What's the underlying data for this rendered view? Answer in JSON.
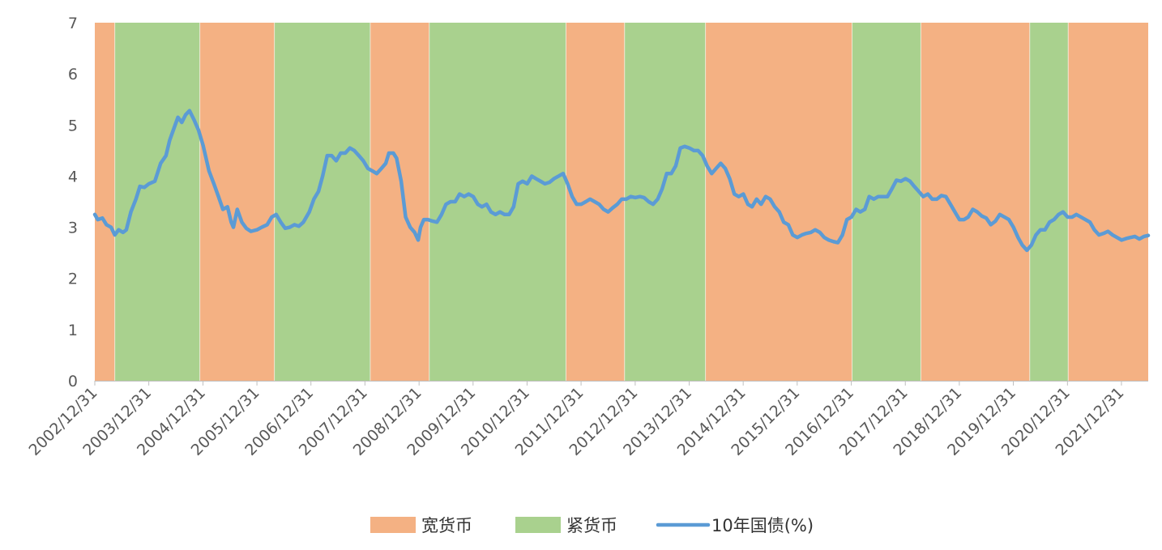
{
  "chart_data": {
    "type": "line",
    "x_type": "date",
    "xlim": [
      "2002-12-31",
      "2022-06-30"
    ],
    "ylim": [
      0,
      7
    ],
    "y_ticks": [
      0,
      1,
      2,
      3,
      4,
      5,
      6,
      7
    ],
    "x_ticks": [
      "2002/12/31",
      "2003/12/31",
      "2004/12/31",
      "2005/12/31",
      "2006/12/31",
      "2007/12/31",
      "2008/12/31",
      "2009/12/31",
      "2010/12/31",
      "2011/12/31",
      "2012/12/31",
      "2013/12/31",
      "2014/12/31",
      "2015/12/31",
      "2016/12/31",
      "2017/12/31",
      "2018/12/31",
      "2019/12/31",
      "2020/12/31",
      "2021/12/31"
    ],
    "grid": false,
    "legend": {
      "position": "bottom",
      "items": [
        {
          "label": "宽货币",
          "type": "band",
          "color": "#F4B183"
        },
        {
          "label": "紧货币",
          "type": "band",
          "color": "#A9D18E"
        },
        {
          "label": "10年国债(%)",
          "type": "line",
          "color": "#5B9BD5"
        }
      ]
    },
    "regimes": [
      {
        "type": "宽货币",
        "start": "2002-12-31",
        "end": "2003-05-15"
      },
      {
        "type": "紧货币",
        "start": "2003-05-15",
        "end": "2004-12-10"
      },
      {
        "type": "宽货币",
        "start": "2004-12-10",
        "end": "2006-04-28"
      },
      {
        "type": "紧货币",
        "start": "2006-04-28",
        "end": "2008-02-05"
      },
      {
        "type": "宽货币",
        "start": "2008-02-05",
        "end": "2009-03-10"
      },
      {
        "type": "紧货币",
        "start": "2009-03-10",
        "end": "2011-09-20"
      },
      {
        "type": "宽货币",
        "start": "2011-09-20",
        "end": "2012-10-20"
      },
      {
        "type": "紧货币",
        "start": "2012-10-20",
        "end": "2014-04-20"
      },
      {
        "type": "宽货币",
        "start": "2014-04-20",
        "end": "2017-01-05"
      },
      {
        "type": "紧货币",
        "start": "2017-01-05",
        "end": "2018-04-15"
      },
      {
        "type": "宽货币",
        "start": "2018-04-15",
        "end": "2020-04-20"
      },
      {
        "type": "紧货币",
        "start": "2020-04-20",
        "end": "2021-01-05"
      },
      {
        "type": "宽货币",
        "start": "2021-01-05",
        "end": "2022-06-30"
      }
    ],
    "series": [
      {
        "name": "10年国债(%)",
        "color": "#5B9BD5",
        "points": [
          [
            "2002-12-31",
            3.25
          ],
          [
            "2003-01-20",
            3.15
          ],
          [
            "2003-02-20",
            3.18
          ],
          [
            "2003-03-20",
            3.05
          ],
          [
            "2003-04-20",
            3.0
          ],
          [
            "2003-05-15",
            2.85
          ],
          [
            "2003-06-10",
            2.95
          ],
          [
            "2003-07-10",
            2.9
          ],
          [
            "2003-08-01",
            2.95
          ],
          [
            "2003-09-01",
            3.3
          ],
          [
            "2003-10-05",
            3.55
          ],
          [
            "2003-11-01",
            3.8
          ],
          [
            "2003-12-01",
            3.78
          ],
          [
            "2004-01-01",
            3.85
          ],
          [
            "2004-02-10",
            3.9
          ],
          [
            "2004-03-20",
            4.25
          ],
          [
            "2004-04-25",
            4.4
          ],
          [
            "2004-05-20",
            4.7
          ],
          [
            "2004-06-20",
            4.95
          ],
          [
            "2004-07-15",
            5.15
          ],
          [
            "2004-08-10",
            5.05
          ],
          [
            "2004-09-05",
            5.2
          ],
          [
            "2004-10-01",
            5.28
          ],
          [
            "2004-11-01",
            5.1
          ],
          [
            "2004-12-01",
            4.9
          ],
          [
            "2005-01-01",
            4.6
          ],
          [
            "2005-02-10",
            4.1
          ],
          [
            "2005-03-15",
            3.85
          ],
          [
            "2005-04-15",
            3.6
          ],
          [
            "2005-05-15",
            3.35
          ],
          [
            "2005-06-15",
            3.4
          ],
          [
            "2005-07-10",
            3.1
          ],
          [
            "2005-07-25",
            3.0
          ],
          [
            "2005-08-20",
            3.35
          ],
          [
            "2005-09-20",
            3.1
          ],
          [
            "2005-10-20",
            2.98
          ],
          [
            "2005-11-20",
            2.92
          ],
          [
            "2005-12-31",
            2.95
          ],
          [
            "2006-02-01",
            3.0
          ],
          [
            "2006-03-10",
            3.05
          ],
          [
            "2006-04-10",
            3.2
          ],
          [
            "2006-05-10",
            3.25
          ],
          [
            "2006-06-10",
            3.1
          ],
          [
            "2006-07-10",
            2.98
          ],
          [
            "2006-08-10",
            3.0
          ],
          [
            "2006-09-10",
            3.05
          ],
          [
            "2006-10-10",
            3.02
          ],
          [
            "2006-11-10",
            3.1
          ],
          [
            "2006-12-20",
            3.3
          ],
          [
            "2007-01-20",
            3.55
          ],
          [
            "2007-02-20",
            3.7
          ],
          [
            "2007-03-20",
            4.0
          ],
          [
            "2007-04-20",
            4.4
          ],
          [
            "2007-05-20",
            4.4
          ],
          [
            "2007-06-20",
            4.3
          ],
          [
            "2007-07-20",
            4.45
          ],
          [
            "2007-08-20",
            4.45
          ],
          [
            "2007-09-20",
            4.55
          ],
          [
            "2007-10-20",
            4.5
          ],
          [
            "2007-11-20",
            4.4
          ],
          [
            "2007-12-20",
            4.3
          ],
          [
            "2008-01-20",
            4.15
          ],
          [
            "2008-02-20",
            4.1
          ],
          [
            "2008-03-20",
            4.05
          ],
          [
            "2008-04-20",
            4.15
          ],
          [
            "2008-05-20",
            4.25
          ],
          [
            "2008-06-10",
            4.45
          ],
          [
            "2008-07-10",
            4.45
          ],
          [
            "2008-08-01",
            4.35
          ],
          [
            "2008-09-01",
            3.9
          ],
          [
            "2008-10-01",
            3.2
          ],
          [
            "2008-11-01",
            3.0
          ],
          [
            "2008-12-01",
            2.9
          ],
          [
            "2008-12-25",
            2.75
          ],
          [
            "2009-01-10",
            3.0
          ],
          [
            "2009-02-01",
            3.15
          ],
          [
            "2009-03-01",
            3.15
          ],
          [
            "2009-04-01",
            3.12
          ],
          [
            "2009-05-01",
            3.1
          ],
          [
            "2009-06-01",
            3.25
          ],
          [
            "2009-07-01",
            3.45
          ],
          [
            "2009-08-01",
            3.5
          ],
          [
            "2009-09-01",
            3.5
          ],
          [
            "2009-10-01",
            3.65
          ],
          [
            "2009-11-01",
            3.6
          ],
          [
            "2009-12-01",
            3.65
          ],
          [
            "2010-01-01",
            3.6
          ],
          [
            "2010-02-01",
            3.45
          ],
          [
            "2010-03-01",
            3.4
          ],
          [
            "2010-04-01",
            3.45
          ],
          [
            "2010-05-01",
            3.3
          ],
          [
            "2010-06-01",
            3.25
          ],
          [
            "2010-07-01",
            3.3
          ],
          [
            "2010-08-01",
            3.25
          ],
          [
            "2010-09-01",
            3.25
          ],
          [
            "2010-10-01",
            3.4
          ],
          [
            "2010-11-01",
            3.85
          ],
          [
            "2010-12-01",
            3.9
          ],
          [
            "2011-01-01",
            3.85
          ],
          [
            "2011-02-01",
            4.0
          ],
          [
            "2011-03-01",
            3.95
          ],
          [
            "2011-04-01",
            3.9
          ],
          [
            "2011-05-01",
            3.85
          ],
          [
            "2011-06-01",
            3.88
          ],
          [
            "2011-07-01",
            3.95
          ],
          [
            "2011-08-01",
            4.0
          ],
          [
            "2011-09-01",
            4.05
          ],
          [
            "2011-10-01",
            3.85
          ],
          [
            "2011-11-01",
            3.6
          ],
          [
            "2011-12-01",
            3.45
          ],
          [
            "2012-01-01",
            3.45
          ],
          [
            "2012-02-01",
            3.5
          ],
          [
            "2012-03-01",
            3.55
          ],
          [
            "2012-04-01",
            3.5
          ],
          [
            "2012-05-01",
            3.45
          ],
          [
            "2012-06-01",
            3.35
          ],
          [
            "2012-07-01",
            3.3
          ],
          [
            "2012-08-01",
            3.38
          ],
          [
            "2012-09-01",
            3.45
          ],
          [
            "2012-10-01",
            3.55
          ],
          [
            "2012-11-01",
            3.55
          ],
          [
            "2012-12-01",
            3.6
          ],
          [
            "2013-01-01",
            3.58
          ],
          [
            "2013-02-01",
            3.6
          ],
          [
            "2013-03-01",
            3.58
          ],
          [
            "2013-04-01",
            3.5
          ],
          [
            "2013-05-01",
            3.45
          ],
          [
            "2013-06-01",
            3.55
          ],
          [
            "2013-07-01",
            3.75
          ],
          [
            "2013-08-01",
            4.05
          ],
          [
            "2013-09-01",
            4.05
          ],
          [
            "2013-10-01",
            4.2
          ],
          [
            "2013-11-01",
            4.55
          ],
          [
            "2013-12-01",
            4.58
          ],
          [
            "2014-01-01",
            4.55
          ],
          [
            "2014-02-01",
            4.5
          ],
          [
            "2014-03-01",
            4.5
          ],
          [
            "2014-04-01",
            4.4
          ],
          [
            "2014-05-01",
            4.2
          ],
          [
            "2014-06-01",
            4.05
          ],
          [
            "2014-07-01",
            4.15
          ],
          [
            "2014-08-01",
            4.25
          ],
          [
            "2014-09-01",
            4.15
          ],
          [
            "2014-10-01",
            3.95
          ],
          [
            "2014-11-01",
            3.65
          ],
          [
            "2014-12-01",
            3.6
          ],
          [
            "2015-01-01",
            3.65
          ],
          [
            "2015-02-01",
            3.45
          ],
          [
            "2015-03-01",
            3.4
          ],
          [
            "2015-04-01",
            3.55
          ],
          [
            "2015-05-01",
            3.45
          ],
          [
            "2015-06-01",
            3.6
          ],
          [
            "2015-07-01",
            3.55
          ],
          [
            "2015-08-01",
            3.4
          ],
          [
            "2015-09-01",
            3.3
          ],
          [
            "2015-10-01",
            3.1
          ],
          [
            "2015-11-01",
            3.05
          ],
          [
            "2015-12-01",
            2.85
          ],
          [
            "2016-01-01",
            2.8
          ],
          [
            "2016-02-01",
            2.85
          ],
          [
            "2016-03-01",
            2.88
          ],
          [
            "2016-04-01",
            2.9
          ],
          [
            "2016-05-01",
            2.95
          ],
          [
            "2016-06-01",
            2.9
          ],
          [
            "2016-07-01",
            2.8
          ],
          [
            "2016-08-01",
            2.75
          ],
          [
            "2016-09-01",
            2.72
          ],
          [
            "2016-10-01",
            2.7
          ],
          [
            "2016-11-01",
            2.85
          ],
          [
            "2016-12-01",
            3.15
          ],
          [
            "2017-01-01",
            3.2
          ],
          [
            "2017-02-01",
            3.35
          ],
          [
            "2017-03-01",
            3.3
          ],
          [
            "2017-04-01",
            3.35
          ],
          [
            "2017-05-01",
            3.6
          ],
          [
            "2017-06-01",
            3.55
          ],
          [
            "2017-07-01",
            3.6
          ],
          [
            "2017-08-01",
            3.6
          ],
          [
            "2017-09-01",
            3.6
          ],
          [
            "2017-10-01",
            3.75
          ],
          [
            "2017-11-01",
            3.92
          ],
          [
            "2017-12-01",
            3.9
          ],
          [
            "2018-01-01",
            3.95
          ],
          [
            "2018-02-01",
            3.9
          ],
          [
            "2018-03-01",
            3.8
          ],
          [
            "2018-04-01",
            3.7
          ],
          [
            "2018-05-01",
            3.6
          ],
          [
            "2018-06-01",
            3.65
          ],
          [
            "2018-07-01",
            3.55
          ],
          [
            "2018-08-01",
            3.55
          ],
          [
            "2018-09-01",
            3.62
          ],
          [
            "2018-10-01",
            3.6
          ],
          [
            "2018-11-01",
            3.45
          ],
          [
            "2018-12-01",
            3.3
          ],
          [
            "2019-01-01",
            3.15
          ],
          [
            "2019-02-01",
            3.15
          ],
          [
            "2019-03-01",
            3.2
          ],
          [
            "2019-04-01",
            3.35
          ],
          [
            "2019-05-01",
            3.3
          ],
          [
            "2019-06-01",
            3.22
          ],
          [
            "2019-07-01",
            3.18
          ],
          [
            "2019-08-01",
            3.05
          ],
          [
            "2019-09-01",
            3.12
          ],
          [
            "2019-10-01",
            3.25
          ],
          [
            "2019-11-01",
            3.2
          ],
          [
            "2019-12-01",
            3.15
          ],
          [
            "2020-01-01",
            3.0
          ],
          [
            "2020-02-01",
            2.8
          ],
          [
            "2020-03-01",
            2.65
          ],
          [
            "2020-04-01",
            2.55
          ],
          [
            "2020-05-01",
            2.65
          ],
          [
            "2020-06-01",
            2.85
          ],
          [
            "2020-07-01",
            2.95
          ],
          [
            "2020-08-01",
            2.95
          ],
          [
            "2020-09-01",
            3.1
          ],
          [
            "2020-10-01",
            3.15
          ],
          [
            "2020-11-01",
            3.25
          ],
          [
            "2020-12-01",
            3.3
          ],
          [
            "2021-01-01",
            3.2
          ],
          [
            "2021-02-01",
            3.2
          ],
          [
            "2021-03-01",
            3.25
          ],
          [
            "2021-04-01",
            3.2
          ],
          [
            "2021-05-01",
            3.15
          ],
          [
            "2021-06-01",
            3.1
          ],
          [
            "2021-07-01",
            2.95
          ],
          [
            "2021-08-01",
            2.85
          ],
          [
            "2021-09-01",
            2.88
          ],
          [
            "2021-10-01",
            2.92
          ],
          [
            "2021-11-01",
            2.85
          ],
          [
            "2021-12-01",
            2.8
          ],
          [
            "2022-01-01",
            2.75
          ],
          [
            "2022-02-01",
            2.78
          ],
          [
            "2022-03-01",
            2.8
          ],
          [
            "2022-04-01",
            2.82
          ],
          [
            "2022-05-01",
            2.77
          ],
          [
            "2022-06-01",
            2.82
          ],
          [
            "2022-06-30",
            2.84
          ]
        ]
      }
    ]
  }
}
